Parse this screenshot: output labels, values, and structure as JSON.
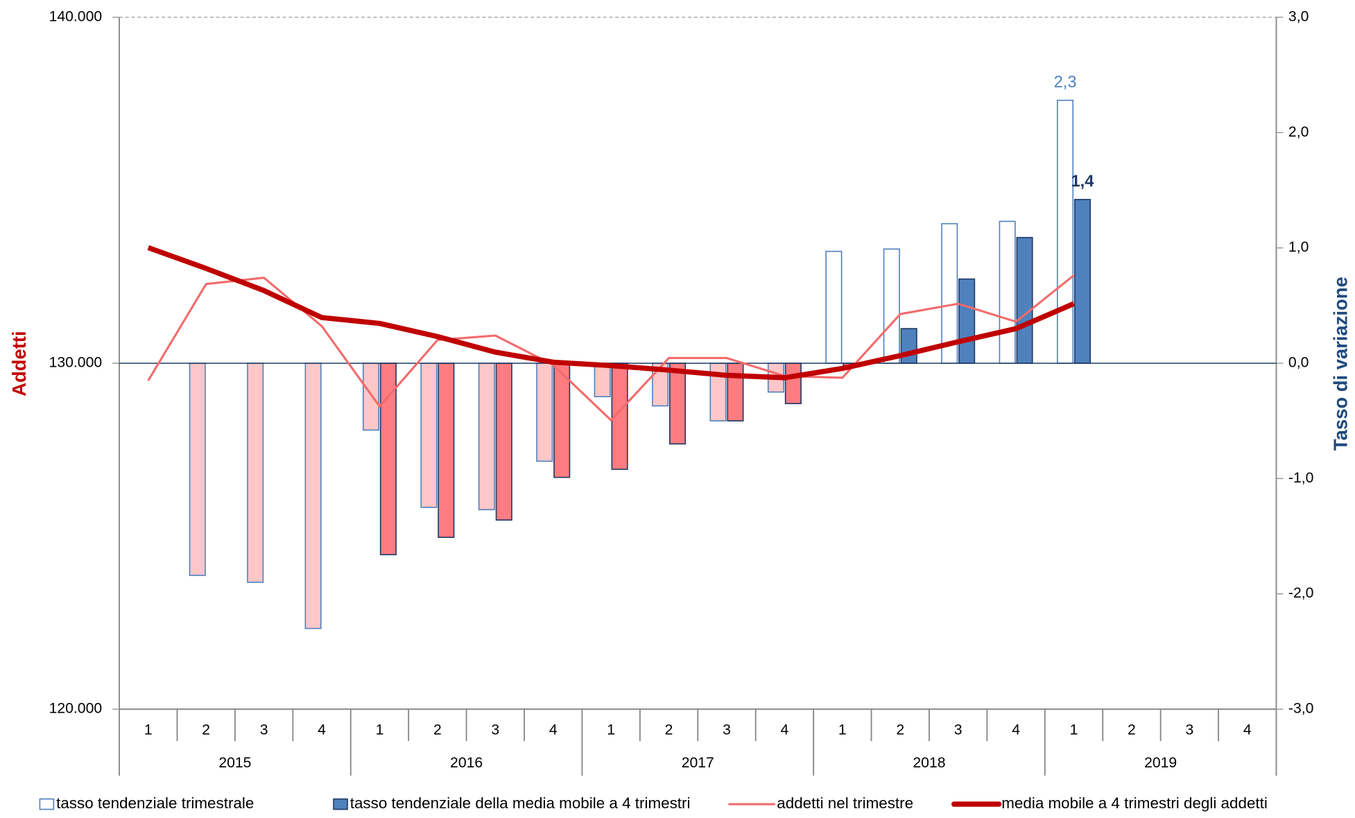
{
  "chart_data": {
    "type": "combo",
    "categories": [
      "1",
      "2",
      "3",
      "4",
      "1",
      "2",
      "3",
      "4",
      "1",
      "2",
      "3",
      "4",
      "1",
      "2",
      "3",
      "4",
      "1",
      "2",
      "3",
      "4"
    ],
    "groups": [
      "2015",
      "2016",
      "2017",
      "2018",
      "2019"
    ],
    "ylabel": "Addetti",
    "y2label": "Tasso di variazione",
    "ylim": [
      120000,
      140000
    ],
    "yticks": [
      {
        "value": 120000,
        "label": "120.000"
      },
      {
        "value": 130000,
        "label": "130.000"
      },
      {
        "value": 140000,
        "label": "140.000"
      }
    ],
    "y2lim": [
      -3,
      3
    ],
    "y2ticks": [
      {
        "value": -3,
        "label": "-3,0"
      },
      {
        "value": -2,
        "label": "-2,0"
      },
      {
        "value": -1,
        "label": "-1,0"
      },
      {
        "value": 0,
        "label": "0,0"
      },
      {
        "value": 1,
        "label": "1,0"
      },
      {
        "value": 2,
        "label": "2,0"
      },
      {
        "value": 3,
        "label": "3,0"
      }
    ],
    "legend": "bottom",
    "series": [
      {
        "name": "tasso tendenziale trimestrale",
        "type": "bar",
        "axis": "y2",
        "color": "#ffffff",
        "negative_color": "#ffc7c7",
        "stroke": "#4f81bd",
        "values": [
          null,
          -1.84,
          -1.9,
          -2.3,
          -0.58,
          -1.25,
          -1.27,
          -0.85,
          -0.29,
          -0.37,
          -0.5,
          -0.25,
          0.97,
          0.99,
          1.21,
          1.23,
          2.28,
          null,
          null,
          null
        ],
        "value_labels": [
          null,
          null,
          null,
          null,
          null,
          null,
          null,
          null,
          null,
          null,
          null,
          null,
          null,
          null,
          null,
          null,
          "2,3",
          null,
          null,
          null
        ]
      },
      {
        "name": "tasso tendenziale della media mobile a 4 trimestri",
        "type": "bar",
        "axis": "y2",
        "color": "#4f81bd",
        "negative_color": "#ff7c80",
        "stroke": "#1f3864",
        "values": [
          null,
          null,
          null,
          null,
          -1.66,
          -1.51,
          -1.36,
          -0.99,
          -0.92,
          -0.7,
          -0.5,
          -0.35,
          -0.02,
          0.3,
          0.73,
          1.09,
          1.42,
          null,
          null,
          null
        ],
        "value_labels": [
          null,
          null,
          null,
          null,
          null,
          null,
          null,
          null,
          null,
          null,
          null,
          null,
          null,
          null,
          null,
          null,
          "1,4",
          null,
          null,
          null
        ]
      },
      {
        "name": "addetti nel trimestre",
        "type": "line",
        "color": "#f36b6b",
        "width": 2.5,
        "values": [
          129500,
          132290,
          132470,
          131070,
          128750,
          130670,
          130800,
          129950,
          128350,
          130150,
          130150,
          129630,
          129580,
          131420,
          131720,
          131200,
          132540,
          null,
          null,
          null
        ]
      },
      {
        "name": "media mobile a 4 trimestri degli addetti",
        "type": "line",
        "color": "#c00000",
        "width": 6,
        "values": [
          133340,
          132740,
          132100,
          131320,
          131150,
          130770,
          130320,
          130030,
          129930,
          129800,
          129650,
          129580,
          129850,
          130220,
          130620,
          131000,
          131720,
          null,
          null,
          null
        ]
      }
    ]
  }
}
